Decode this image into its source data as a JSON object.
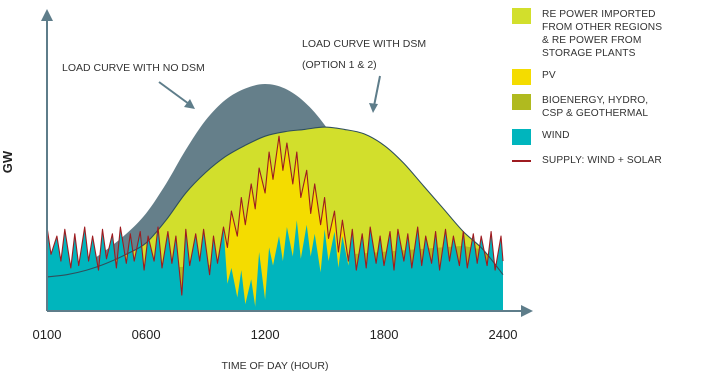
{
  "chart_data": {
    "type": "area",
    "xlabel": "TIME OF DAY (HOUR)",
    "ylabel": "GW",
    "x_ticks": [
      "0100",
      "0600",
      "1200",
      "1800",
      "2400"
    ],
    "x_tick_values": [
      1,
      6,
      12,
      18,
      24
    ],
    "xlim": [
      1,
      24
    ],
    "y_ticks": [],
    "annotations": {
      "no_dsm": "LOAD CURVE WITH NO DSM",
      "dsm_line1": "LOAD CURVE WITH DSM",
      "dsm_line2": "(OPTION 1 & 2)"
    },
    "legend": [
      {
        "key": "imported",
        "label": "RE POWER IMPORTED\nFROM OTHER REGIONS\n& RE POWER FROM\nSTORAGE PLANTS",
        "color": "#d2df2c",
        "shape": "square"
      },
      {
        "key": "pv",
        "label": "PV",
        "color": "#f4dc00",
        "shape": "square"
      },
      {
        "key": "bio",
        "label": "BIOENERGY, HYDRO,\nCSP & GEOTHERMAL",
        "color": "#b0ba1f",
        "shape": "square"
      },
      {
        "key": "wind",
        "label": "WIND",
        "color": "#00b5bd",
        "shape": "square"
      },
      {
        "key": "supply",
        "label": "SUPPLY: WIND + SOLAR",
        "color": "#9e1b20",
        "shape": "line"
      }
    ],
    "series": {
      "load_no_dsm": {
        "x": [
          1,
          2,
          3,
          4,
          5,
          6,
          7,
          8,
          9,
          10,
          11,
          12,
          13,
          14,
          15,
          16,
          17,
          18,
          19,
          20,
          21,
          22,
          23,
          24
        ],
        "y": [
          0.15,
          0.17,
          0.21,
          0.27,
          0.34,
          0.43,
          0.56,
          0.71,
          0.84,
          0.93,
          0.98,
          1.0,
          0.98,
          0.92,
          0.82,
          0.68,
          0.55,
          0.46,
          0.4,
          0.35,
          0.31,
          0.28,
          0.23,
          0.16
        ]
      },
      "load_dsm": {
        "x": [
          1,
          2,
          3,
          4,
          5,
          6,
          7,
          8,
          9,
          10,
          11,
          12,
          13,
          14,
          15,
          16,
          17,
          18,
          19,
          20,
          21,
          22,
          23,
          24
        ],
        "y": [
          0.15,
          0.16,
          0.18,
          0.21,
          0.25,
          0.3,
          0.4,
          0.52,
          0.61,
          0.68,
          0.73,
          0.77,
          0.79,
          0.8,
          0.81,
          0.8,
          0.78,
          0.73,
          0.65,
          0.55,
          0.45,
          0.35,
          0.27,
          0.16
        ]
      },
      "base_bio": {
        "x": [
          1,
          24
        ],
        "y": [
          0.15,
          0.3
        ]
      },
      "wind": {
        "x": [
          1.0,
          1.2,
          1.5,
          1.7,
          1.9,
          2.2,
          2.4,
          2.6,
          2.9,
          3.1,
          3.3,
          3.6,
          3.8,
          4.0,
          4.3,
          4.5,
          4.7,
          5.0,
          5.2,
          5.4,
          5.7,
          5.9,
          6.1,
          6.4,
          6.6,
          6.8,
          7.1,
          7.3,
          7.5,
          7.8,
          8.0,
          8.2,
          8.5,
          8.7,
          8.9,
          9.2,
          9.4,
          9.6,
          9.9,
          10.1,
          10.3,
          10.6,
          10.8,
          11.0,
          11.3,
          11.5,
          11.7,
          12.0,
          12.2,
          12.4,
          12.7,
          12.9,
          13.1,
          13.4,
          13.6,
          13.8,
          14.1,
          14.3,
          14.5,
          14.8,
          15.0,
          15.2,
          15.5,
          15.7,
          15.9,
          16.2,
          16.4,
          16.6,
          16.9,
          17.1,
          17.3,
          17.6,
          17.8,
          18.0,
          18.3,
          18.5,
          18.7,
          19.0,
          19.2,
          19.4,
          19.7,
          19.9,
          20.1,
          20.4,
          20.6,
          20.8,
          21.1,
          21.3,
          21.5,
          21.8,
          22.0,
          22.2,
          22.5,
          22.7,
          22.9,
          23.2,
          23.4,
          23.6,
          23.9,
          24.0
        ],
        "y": [
          0.37,
          0.25,
          0.33,
          0.22,
          0.36,
          0.19,
          0.34,
          0.2,
          0.37,
          0.22,
          0.33,
          0.18,
          0.36,
          0.23,
          0.34,
          0.19,
          0.37,
          0.21,
          0.34,
          0.22,
          0.35,
          0.18,
          0.33,
          0.22,
          0.37,
          0.19,
          0.35,
          0.21,
          0.33,
          0.07,
          0.36,
          0.2,
          0.34,
          0.22,
          0.36,
          0.16,
          0.33,
          0.21,
          0.37,
          0.12,
          0.19,
          0.06,
          0.18,
          0.03,
          0.14,
          0.02,
          0.26,
          0.05,
          0.28,
          0.2,
          0.33,
          0.22,
          0.37,
          0.24,
          0.4,
          0.23,
          0.38,
          0.24,
          0.34,
          0.17,
          0.36,
          0.22,
          0.35,
          0.19,
          0.33,
          0.2,
          0.36,
          0.18,
          0.34,
          0.19,
          0.37,
          0.21,
          0.33,
          0.2,
          0.35,
          0.18,
          0.36,
          0.22,
          0.34,
          0.19,
          0.37,
          0.2,
          0.33,
          0.21,
          0.35,
          0.18,
          0.36,
          0.22,
          0.33,
          0.2,
          0.35,
          0.19,
          0.34,
          0.21,
          0.33,
          0.2,
          0.35,
          0.18,
          0.33,
          0.22
        ]
      },
      "supply": {
        "x": [
          1.0,
          1.2,
          1.5,
          1.7,
          1.9,
          2.2,
          2.4,
          2.6,
          2.9,
          3.1,
          3.3,
          3.6,
          3.8,
          4.0,
          4.3,
          4.5,
          4.7,
          5.0,
          5.2,
          5.4,
          5.7,
          5.9,
          6.1,
          6.4,
          6.6,
          6.8,
          7.1,
          7.3,
          7.5,
          7.8,
          8.0,
          8.2,
          8.5,
          8.7,
          8.9,
          9.2,
          9.4,
          9.6,
          9.9,
          10.1,
          10.3,
          10.6,
          10.8,
          11.0,
          11.3,
          11.5,
          11.7,
          12.0,
          12.2,
          12.4,
          12.7,
          12.9,
          13.1,
          13.4,
          13.6,
          13.8,
          14.1,
          14.3,
          14.5,
          14.8,
          15.0,
          15.2,
          15.5,
          15.7,
          15.9,
          16.2,
          16.4,
          16.6,
          16.9,
          17.1,
          17.3,
          17.6,
          17.8,
          18.0,
          18.3,
          18.5,
          18.7,
          19.0,
          19.2,
          19.4,
          19.7,
          19.9,
          20.1,
          20.4,
          20.6,
          20.8,
          21.1,
          21.3,
          21.5,
          21.8,
          22.0,
          22.2,
          22.5,
          22.7,
          22.9,
          23.2,
          23.4,
          23.6,
          23.9,
          24.0
        ],
        "y": [
          0.37,
          0.25,
          0.33,
          0.22,
          0.36,
          0.19,
          0.34,
          0.2,
          0.37,
          0.22,
          0.33,
          0.18,
          0.36,
          0.23,
          0.34,
          0.19,
          0.37,
          0.21,
          0.34,
          0.22,
          0.35,
          0.18,
          0.33,
          0.22,
          0.37,
          0.19,
          0.35,
          0.21,
          0.33,
          0.07,
          0.36,
          0.2,
          0.34,
          0.22,
          0.36,
          0.16,
          0.33,
          0.21,
          0.37,
          0.28,
          0.44,
          0.33,
          0.5,
          0.38,
          0.56,
          0.45,
          0.63,
          0.52,
          0.7,
          0.58,
          0.77,
          0.62,
          0.74,
          0.56,
          0.7,
          0.5,
          0.62,
          0.43,
          0.56,
          0.38,
          0.5,
          0.32,
          0.44,
          0.26,
          0.4,
          0.22,
          0.36,
          0.18,
          0.34,
          0.19,
          0.37,
          0.21,
          0.33,
          0.2,
          0.35,
          0.18,
          0.36,
          0.22,
          0.34,
          0.19,
          0.37,
          0.2,
          0.33,
          0.21,
          0.35,
          0.18,
          0.36,
          0.22,
          0.33,
          0.2,
          0.35,
          0.19,
          0.34,
          0.21,
          0.33,
          0.2,
          0.35,
          0.18,
          0.33,
          0.22
        ]
      }
    },
    "colors": {
      "load_no_dsm_fill": "#657f8a",
      "imported_fill": "#d2df2c",
      "bio_fill": "#b0ba1f",
      "pv_fill": "#f4dc00",
      "wind_fill": "#00b5bd",
      "supply_line": "#9e1b20",
      "axis": "#5e7d8a",
      "dsm_curve_line": "#2f4f5c"
    }
  }
}
